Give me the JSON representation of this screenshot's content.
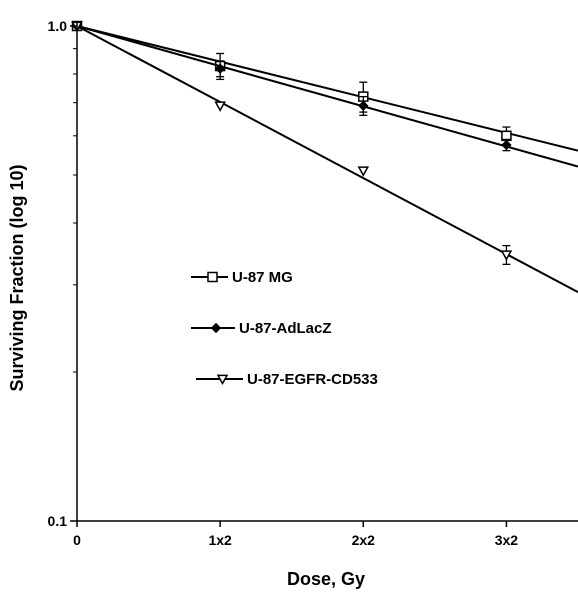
{
  "chart_data": {
    "type": "line",
    "xlabel": "Dose, Gy",
    "ylabel": "Surviving Fraction (log 10)",
    "yscale": "log",
    "ylim": [
      0.1,
      1.0
    ],
    "xlim": [
      0,
      3.5
    ],
    "x_ticks": [
      {
        "value": 0,
        "label": "0"
      },
      {
        "value": 1,
        "label": "1x2"
      },
      {
        "value": 2,
        "label": "2x2"
      },
      {
        "value": 3,
        "label": "3x2"
      }
    ],
    "y_ticks": [
      {
        "value": 1.0,
        "label": "1.0"
      },
      {
        "value": 0.1,
        "label": "0.1"
      }
    ],
    "grid": false,
    "legend_position": "center-left",
    "series": [
      {
        "name": "U-87 MG",
        "marker": "open-square",
        "x": [
          0,
          1,
          2,
          3
        ],
        "y": [
          1.0,
          0.83,
          0.72,
          0.6
        ],
        "err": [
          0,
          0.05,
          0.05,
          0.025
        ],
        "fit": {
          "x": [
            0,
            3.5
          ],
          "y": [
            1.0,
            0.56
          ]
        }
      },
      {
        "name": "U-87-AdLacZ",
        "marker": "filled-diamond",
        "x": [
          0,
          1,
          2,
          3
        ],
        "y": [
          1.0,
          0.82,
          0.69,
          0.575
        ],
        "err": [
          0,
          0.03,
          0.03,
          0.015
        ],
        "fit": {
          "x": [
            0,
            3.5
          ],
          "y": [
            1.0,
            0.52
          ]
        }
      },
      {
        "name": "U-87-EGFR-CD533",
        "marker": "open-triangle-down",
        "x": [
          0,
          1,
          2,
          3
        ],
        "y": [
          1.0,
          0.69,
          0.51,
          0.345
        ],
        "err": [
          0,
          0,
          0,
          0.015
        ],
        "fit": {
          "x": [
            0,
            3.5
          ],
          "y": [
            1.0,
            0.29
          ]
        }
      }
    ]
  }
}
